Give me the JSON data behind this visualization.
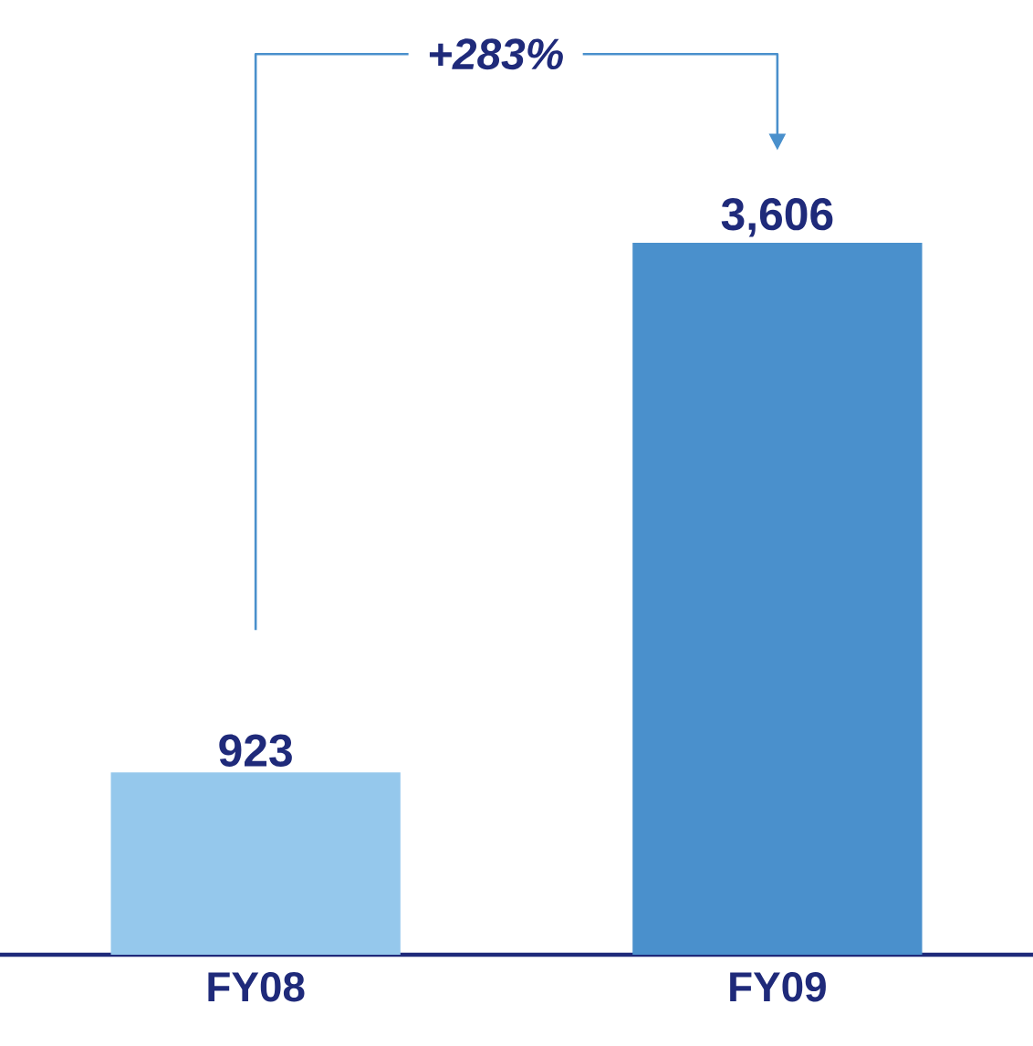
{
  "chart_data": {
    "type": "bar",
    "categories": [
      "FY08",
      "FY09"
    ],
    "values": [
      923,
      3606
    ],
    "value_labels": [
      "923",
      "3,606"
    ],
    "colors": [
      "#95c8ec",
      "#4a90cc"
    ],
    "annotations": [
      "+283%"
    ]
  }
}
